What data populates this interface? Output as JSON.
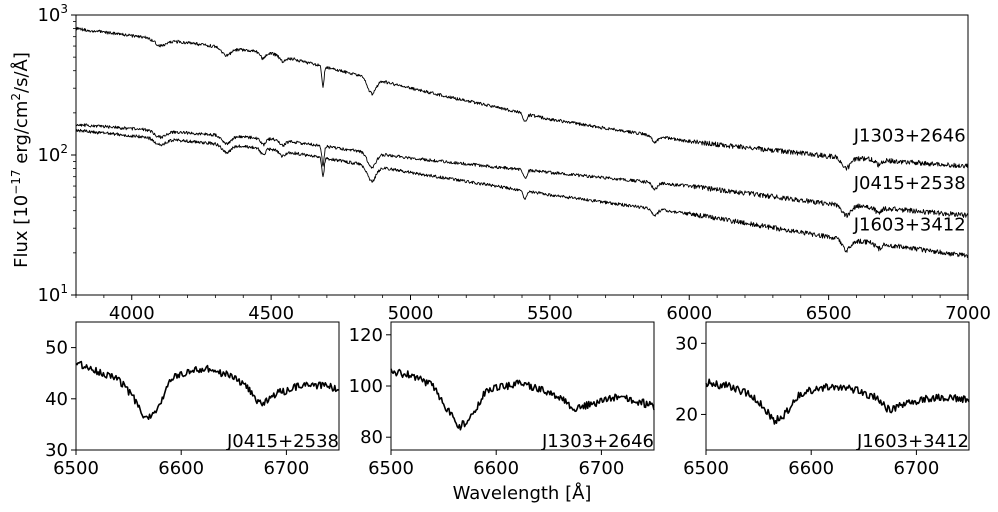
{
  "figure": {
    "ylabel": "Flux [10⁻¹⁷ erg/cm²/s/Å]",
    "xlabel": "Wavelength [Å]",
    "ylabel_parts": {
      "pre": "Flux [10",
      "sup1": "−17",
      "mid": " erg/cm",
      "sup2": "2",
      "post": "/s/Å]"
    }
  },
  "chart_data": [
    {
      "type": "line",
      "title": "",
      "xlabel": "",
      "ylabel": "Flux [10⁻¹⁷ erg/cm²/s/Å]",
      "xlim": [
        3800,
        7000
      ],
      "ylim": [
        10,
        1000
      ],
      "yscale": "log",
      "xticks": [
        4000,
        4500,
        5000,
        5500,
        6000,
        6500,
        7000
      ],
      "xtick_labels": [
        "4000",
        "4500",
        "5000",
        "5500",
        "6000",
        "6500",
        "7000"
      ],
      "yticks": [
        10,
        100,
        1000
      ],
      "ytick_labels": [
        {
          "base": "10",
          "exp": "1"
        },
        {
          "base": "10",
          "exp": "2"
        },
        {
          "base": "10",
          "exp": "3"
        }
      ],
      "grid": false,
      "legend": "none",
      "series": [
        {
          "name": "J1303+2646",
          "label_x": 6590,
          "label_y": 125,
          "x": [
            3800,
            4500,
            5000,
            5500,
            6000,
            6500,
            7000
          ],
          "y": [
            800,
            530,
            300,
            180,
            125,
            98,
            83
          ]
        },
        {
          "name": "J0415+2538",
          "label_x": 6590,
          "label_y": 57,
          "x": [
            3800,
            4500,
            5000,
            5500,
            6000,
            6500,
            7000
          ],
          "y": [
            165,
            130,
            95,
            75,
            60,
            45,
            37
          ]
        },
        {
          "name": "J1603+3412",
          "label_x": 6590,
          "label_y": 29,
          "x": [
            3800,
            4500,
            5000,
            5500,
            6000,
            6500,
            7000
          ],
          "y": [
            150,
            110,
            75,
            52,
            38,
            26,
            19
          ]
        }
      ],
      "absorption_lines": [
        4102,
        4340,
        4471,
        4541,
        4686,
        4861,
        5411,
        5876,
        6563,
        6678
      ]
    },
    {
      "type": "line",
      "title": "",
      "xlim": [
        6500,
        6750
      ],
      "ylim": [
        30,
        55
      ],
      "xticks": [
        6500,
        6600,
        6700
      ],
      "xtick_labels": [
        "6500",
        "6600",
        "6700"
      ],
      "yticks": [
        30,
        40,
        50
      ],
      "ytick_labels": [
        "30",
        "40",
        "50"
      ],
      "annotation": "J0415+2538",
      "series": [
        {
          "name": "",
          "x": [
            6500,
            6520,
            6540,
            6555,
            6565,
            6575,
            6590,
            6620,
            6640,
            6660,
            6675,
            6690,
            6720,
            6750
          ],
          "y": [
            47,
            45.5,
            44,
            40,
            36,
            37,
            44,
            46,
            45,
            43,
            39,
            41,
            43,
            42
          ]
        }
      ]
    },
    {
      "type": "line",
      "title": "",
      "xlim": [
        6500,
        6750
      ],
      "ylim": [
        75,
        125
      ],
      "xticks": [
        6500,
        6600,
        6700
      ],
      "xtick_labels": [
        "6500",
        "6600",
        "6700"
      ],
      "yticks": [
        80,
        100,
        120
      ],
      "ytick_labels": [
        "80",
        "100",
        "120"
      ],
      "annotation": "J1303+2646",
      "series": [
        {
          "name": "",
          "x": [
            6500,
            6520,
            6540,
            6555,
            6565,
            6575,
            6590,
            6620,
            6640,
            6660,
            6675,
            6690,
            6720,
            6750
          ],
          "y": [
            106,
            104,
            100,
            90,
            84,
            87,
            98,
            101,
            99,
            96,
            91,
            93,
            96,
            92
          ]
        }
      ]
    },
    {
      "type": "line",
      "title": "",
      "xlim": [
        6500,
        6750
      ],
      "ylim": [
        15,
        33
      ],
      "xticks": [
        6500,
        6600,
        6700
      ],
      "xtick_labels": [
        "6500",
        "6600",
        "6700"
      ],
      "yticks": [
        20,
        30
      ],
      "ytick_labels": [
        "20",
        "30"
      ],
      "annotation": "J1603+3412",
      "series": [
        {
          "name": "",
          "x": [
            6500,
            6520,
            6540,
            6555,
            6565,
            6575,
            6590,
            6620,
            6640,
            6660,
            6675,
            6690,
            6720,
            6750
          ],
          "y": [
            24.5,
            24,
            23,
            21,
            19,
            20,
            23,
            24,
            23.5,
            22.5,
            20.5,
            21.5,
            22.5,
            22
          ]
        }
      ]
    }
  ]
}
